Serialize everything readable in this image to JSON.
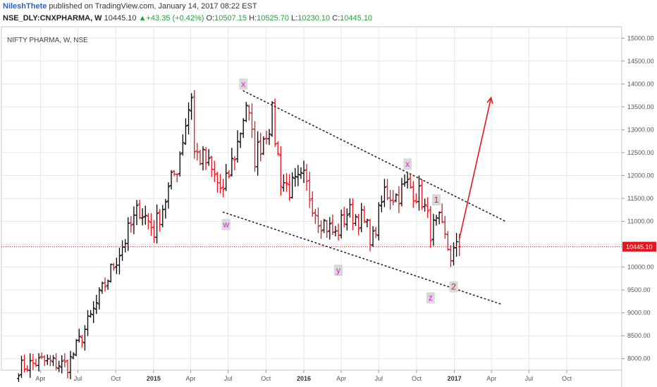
{
  "header": {
    "author": "NileshThete",
    "published_text": "published on TradingView.com, January 14, 2017 08:22 EST",
    "symbol": "NSE_DLY:CNXPHARMA, W",
    "last": "10445.10",
    "change_arrow": "▲",
    "change": "+43.35 (+0.42%)",
    "o_label": "O:",
    "o_value": "10507.15",
    "h_label": "H:",
    "h_value": "10525.70",
    "l_label": "L:",
    "l_value": "10230.10",
    "c_label": "C:",
    "c_value": "10445.10"
  },
  "colors": {
    "up_bar": "#000000",
    "down_bar": "#e8141e",
    "price_line": "#e8141e",
    "trend_arrow": "#e8141e",
    "label_purple": "#e020e0",
    "label_red": "#e8141e",
    "label_bg": "#d9d9d9",
    "grid": "#e6e6e6"
  },
  "chart_data": {
    "type": "ohlc-bar",
    "title": "NIFTY PHARMA, W, NSE",
    "ylim": [
      7750,
      15250
    ],
    "y_ticks": [
      8000,
      8500,
      9000,
      9500,
      10000,
      10500,
      11000,
      11500,
      12000,
      12500,
      13000,
      13500,
      14000,
      14500,
      15000
    ],
    "y_tick_labels": [
      "8000.00",
      "8500.00",
      "9000.00",
      "9500.00",
      "10000.00",
      "10500.00",
      "11000.00",
      "11500.00",
      "12000.00",
      "12500.00",
      "13000.00",
      "13500.00",
      "14000.00",
      "14500.00",
      "15000.00"
    ],
    "x_ticks": [
      {
        "label": "Apr",
        "date": "2014-04-01",
        "bold": false
      },
      {
        "label": "Jul",
        "date": "2014-07-01",
        "bold": false
      },
      {
        "label": "Oct",
        "date": "2014-10-01",
        "bold": false
      },
      {
        "label": "2015",
        "date": "2015-01-01",
        "bold": true
      },
      {
        "label": "Apr",
        "date": "2015-04-01",
        "bold": false
      },
      {
        "label": "Jul",
        "date": "2015-07-01",
        "bold": false
      },
      {
        "label": "Oct",
        "date": "2015-10-01",
        "bold": false
      },
      {
        "label": "2016",
        "date": "2016-01-01",
        "bold": true
      },
      {
        "label": "Apr",
        "date": "2016-04-01",
        "bold": false
      },
      {
        "label": "Jul",
        "date": "2016-07-01",
        "bold": false
      },
      {
        "label": "Oct",
        "date": "2016-10-01",
        "bold": false
      },
      {
        "label": "2017",
        "date": "2017-01-01",
        "bold": true
      },
      {
        "label": "Apr",
        "date": "2017-04-01",
        "bold": false
      },
      {
        "label": "Jul",
        "date": "2017-07-01",
        "bold": false
      },
      {
        "label": "Oct",
        "date": "2017-10-01",
        "bold": false
      }
    ],
    "last_price": 10445.1,
    "last_price_label": "10445.10",
    "key_points": [
      {
        "date": "2014-02-07",
        "price": 7800
      },
      {
        "date": "2014-04-04",
        "price": 7950
      },
      {
        "date": "2014-06-06",
        "price": 7850
      },
      {
        "date": "2014-08-01",
        "price": 8900
      },
      {
        "date": "2014-10-03",
        "price": 10200
      },
      {
        "date": "2014-11-28",
        "price": 11300
      },
      {
        "date": "2015-01-02",
        "price": 10800
      },
      {
        "date": "2015-02-27",
        "price": 12200
      },
      {
        "date": "2015-04-03",
        "price": 13800
      },
      {
        "date": "2015-04-10",
        "price": 12500
      },
      {
        "date": "2015-05-08",
        "price": 12300
      },
      {
        "date": "2015-06-19",
        "price": 11600
      },
      {
        "date": "2015-07-24",
        "price": 12700
      },
      {
        "date": "2015-08-14",
        "price": 13600
      },
      {
        "date": "2015-09-04",
        "price": 12400
      },
      {
        "date": "2015-10-16",
        "price": 13300
      },
      {
        "date": "2015-11-06",
        "price": 11950
      },
      {
        "date": "2015-11-27",
        "price": 11700
      },
      {
        "date": "2016-01-01",
        "price": 11900
      },
      {
        "date": "2016-02-05",
        "price": 11100
      },
      {
        "date": "2016-03-18",
        "price": 10700
      },
      {
        "date": "2016-04-15",
        "price": 11200
      },
      {
        "date": "2016-05-20",
        "price": 11050
      },
      {
        "date": "2016-06-17",
        "price": 10600
      },
      {
        "date": "2016-07-15",
        "price": 11650
      },
      {
        "date": "2016-08-12",
        "price": 11550
      },
      {
        "date": "2016-09-09",
        "price": 11800
      },
      {
        "date": "2016-10-14",
        "price": 11500
      },
      {
        "date": "2016-11-04",
        "price": 10800
      },
      {
        "date": "2016-11-25",
        "price": 10950
      },
      {
        "date": "2016-12-23",
        "price": 10250
      },
      {
        "date": "2017-01-13",
        "price": 10445
      }
    ],
    "channel_upper": [
      {
        "date": "2015-08-07",
        "price": 13850
      },
      {
        "date": "2017-05-05",
        "price": 11000
      }
    ],
    "channel_lower": [
      {
        "date": "2015-06-19",
        "price": 11200
      },
      {
        "date": "2017-04-28",
        "price": 9180
      }
    ],
    "projection_arrow": [
      {
        "date": "2017-01-13",
        "price": 10620
      },
      {
        "date": "2017-03-31",
        "price": 13700
      }
    ],
    "wave_labels": [
      {
        "text": "x",
        "date": "2015-08-07",
        "price": 14000,
        "color": "purple"
      },
      {
        "text": "w",
        "date": "2015-06-26",
        "price": 10930,
        "color": "purple"
      },
      {
        "text": "y",
        "date": "2016-03-25",
        "price": 9930,
        "color": "purple"
      },
      {
        "text": "x",
        "date": "2016-09-09",
        "price": 12250,
        "color": "purple"
      },
      {
        "text": "z",
        "date": "2016-11-04",
        "price": 9330,
        "color": "purple"
      },
      {
        "text": "1",
        "date": "2016-11-18",
        "price": 11470,
        "color": "red"
      },
      {
        "text": "2",
        "date": "2016-12-30",
        "price": 9570,
        "color": "red"
      }
    ]
  }
}
